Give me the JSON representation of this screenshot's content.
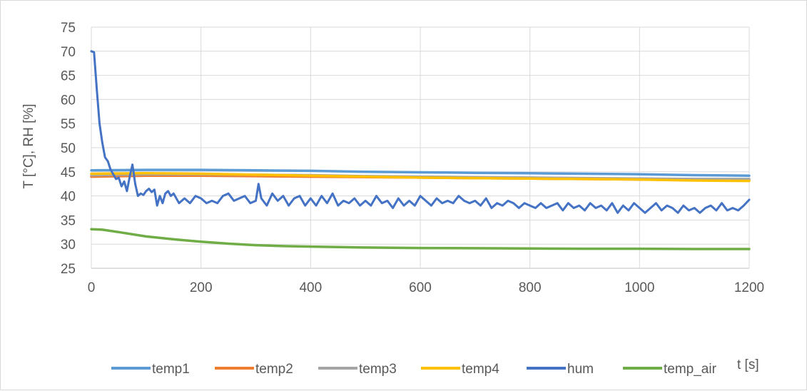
{
  "chart_data": {
    "type": "line",
    "title": "",
    "xlabel": "t [s]",
    "ylabel": "T [°C], RH [%]",
    "xlim": [
      0,
      1200
    ],
    "ylim": [
      25,
      75
    ],
    "x_ticks": [
      "0",
      "200",
      "400",
      "600",
      "800",
      "1000",
      "1200"
    ],
    "y_ticks": [
      "25",
      "30",
      "35",
      "40",
      "45",
      "50",
      "55",
      "60",
      "65",
      "70",
      "75"
    ],
    "grid": true,
    "legend_position": "bottom",
    "series": [
      {
        "name": "temp1",
        "color": "#5B9BD5",
        "x": [
          0,
          100,
          200,
          300,
          400,
          500,
          600,
          700,
          800,
          900,
          1000,
          1100,
          1200
        ],
        "y": [
          45.3,
          45.4,
          45.4,
          45.3,
          45.2,
          45.0,
          44.9,
          44.8,
          44.7,
          44.6,
          44.5,
          44.3,
          44.2
        ]
      },
      {
        "name": "temp2",
        "color": "#ED7D31",
        "x": [
          0,
          100,
          200,
          300,
          400,
          500,
          600,
          700,
          800,
          900,
          1000,
          1100,
          1200
        ],
        "y": [
          44.0,
          44.2,
          44.2,
          44.1,
          44.0,
          43.9,
          43.8,
          43.7,
          43.6,
          43.5,
          43.4,
          43.3,
          43.3
        ]
      },
      {
        "name": "temp3",
        "color": "#A5A5A5",
        "x": [
          0,
          100,
          200,
          300,
          400,
          500,
          600,
          700,
          800,
          900,
          1000,
          1100,
          1200
        ],
        "y": [
          44.3,
          44.5,
          44.5,
          44.4,
          44.3,
          44.1,
          44.0,
          43.9,
          43.8,
          43.7,
          43.6,
          43.5,
          43.5
        ]
      },
      {
        "name": "temp4",
        "color": "#FFC000",
        "x": [
          0,
          100,
          200,
          300,
          400,
          500,
          600,
          700,
          800,
          900,
          1000,
          1100,
          1200
        ],
        "y": [
          44.6,
          44.7,
          44.6,
          44.4,
          44.2,
          44.0,
          43.8,
          43.7,
          43.6,
          43.5,
          43.4,
          43.2,
          43.1
        ]
      },
      {
        "name": "hum",
        "color": "#4472C4",
        "x": [
          0,
          5,
          10,
          15,
          20,
          25,
          30,
          35,
          40,
          45,
          50,
          55,
          60,
          65,
          70,
          75,
          80,
          85,
          90,
          95,
          100,
          105,
          110,
          115,
          120,
          125,
          130,
          135,
          140,
          145,
          150,
          160,
          170,
          180,
          190,
          200,
          210,
          220,
          230,
          240,
          250,
          260,
          270,
          280,
          290,
          300,
          305,
          310,
          320,
          330,
          340,
          350,
          360,
          370,
          380,
          390,
          400,
          410,
          420,
          430,
          440,
          450,
          460,
          470,
          480,
          490,
          500,
          510,
          520,
          530,
          540,
          550,
          560,
          570,
          580,
          590,
          600,
          610,
          620,
          630,
          640,
          650,
          660,
          670,
          680,
          690,
          700,
          710,
          720,
          730,
          740,
          750,
          760,
          770,
          780,
          790,
          800,
          810,
          820,
          830,
          840,
          850,
          860,
          870,
          880,
          890,
          900,
          910,
          920,
          930,
          940,
          950,
          960,
          970,
          980,
          990,
          1000,
          1010,
          1020,
          1030,
          1040,
          1050,
          1060,
          1070,
          1080,
          1090,
          1100,
          1110,
          1120,
          1130,
          1140,
          1150,
          1160,
          1170,
          1180,
          1190,
          1200
        ],
        "y": [
          70.0,
          69.8,
          62.0,
          55.0,
          51.0,
          48.0,
          47.2,
          45.5,
          44.5,
          43.5,
          43.8,
          42.0,
          43.0,
          41.0,
          44.0,
          46.5,
          42.5,
          40.0,
          40.5,
          40.2,
          41.0,
          41.5,
          40.8,
          41.3,
          38.0,
          40.0,
          38.5,
          40.5,
          41.0,
          40.0,
          40.5,
          38.5,
          39.5,
          38.5,
          40.0,
          39.5,
          38.5,
          39.0,
          38.5,
          40.0,
          40.5,
          39.0,
          39.5,
          40.0,
          38.5,
          39.0,
          42.5,
          39.5,
          38.0,
          40.5,
          39.0,
          40.0,
          38.0,
          39.5,
          40.0,
          38.0,
          39.5,
          38.0,
          40.0,
          38.5,
          40.5,
          38.0,
          39.0,
          38.5,
          39.5,
          38.0,
          39.0,
          38.0,
          40.0,
          38.5,
          39.0,
          37.5,
          39.5,
          38.0,
          39.0,
          38.0,
          40.0,
          39.0,
          38.0,
          39.5,
          38.5,
          39.0,
          38.5,
          40.0,
          39.0,
          38.5,
          39.0,
          38.0,
          39.5,
          37.5,
          38.5,
          38.0,
          39.0,
          38.5,
          37.5,
          38.5,
          38.0,
          37.5,
          38.5,
          37.5,
          38.0,
          38.5,
          37.0,
          38.5,
          37.5,
          38.0,
          37.0,
          38.5,
          37.5,
          38.0,
          37.0,
          38.5,
          36.5,
          38.0,
          37.0,
          38.5,
          37.5,
          36.5,
          37.5,
          38.5,
          37.0,
          38.0,
          37.5,
          36.5,
          38.0,
          37.0,
          37.5,
          36.5,
          37.5,
          38.0,
          37.0,
          38.5,
          37.0,
          37.5,
          37.0,
          38.0,
          39.2
        ]
      },
      {
        "name": "temp_air",
        "color": "#70AD47",
        "x": [
          0,
          20,
          50,
          100,
          150,
          200,
          250,
          300,
          350,
          400,
          450,
          500,
          550,
          600,
          700,
          800,
          900,
          1000,
          1100,
          1200
        ],
        "y": [
          33.1,
          33.0,
          32.5,
          31.6,
          31.0,
          30.5,
          30.1,
          29.8,
          29.6,
          29.5,
          29.4,
          29.3,
          29.25,
          29.2,
          29.15,
          29.1,
          29.05,
          29.05,
          29.0,
          29.0
        ]
      }
    ]
  }
}
